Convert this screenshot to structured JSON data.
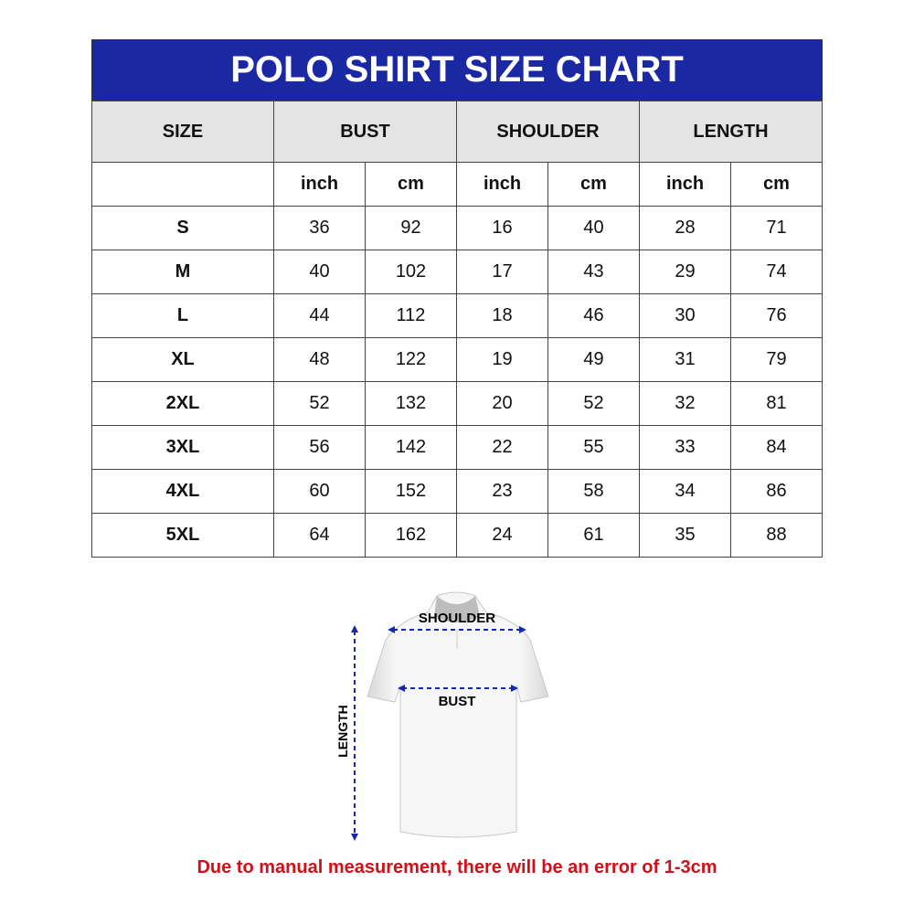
{
  "title": "POLO SHIRT SIZE CHART",
  "headers": {
    "size": "SIZE",
    "bust": "BUST",
    "shoulder": "SHOULDER",
    "length": "LENGTH"
  },
  "units": [
    "inch",
    "cm",
    "inch",
    "cm",
    "inch",
    "cm"
  ],
  "rows": [
    [
      "S",
      "36",
      "92",
      "16",
      "40",
      "28",
      "71"
    ],
    [
      "M",
      "40",
      "102",
      "17",
      "43",
      "29",
      "74"
    ],
    [
      "L",
      "44",
      "112",
      "18",
      "46",
      "30",
      "76"
    ],
    [
      "XL",
      "48",
      "122",
      "19",
      "49",
      "31",
      "79"
    ],
    [
      "2XL",
      "52",
      "132",
      "20",
      "52",
      "32",
      "81"
    ],
    [
      "3XL",
      "56",
      "142",
      "22",
      "55",
      "33",
      "84"
    ],
    [
      "4XL",
      "60",
      "152",
      "23",
      "58",
      "34",
      "86"
    ],
    [
      "5XL",
      "64",
      "162",
      "24",
      "61",
      "35",
      "88"
    ]
  ],
  "diagram": {
    "shoulder": "SHOULDER",
    "bust": "BUST",
    "length": "LENGTH"
  },
  "note": "Due to manual measurement, there will be an error of 1-3cm",
  "colors": {
    "title_bg": "#1a29a3",
    "header_bg": "#e4e4e4",
    "note": "#d0101a",
    "arrow": "#1a29a3"
  }
}
